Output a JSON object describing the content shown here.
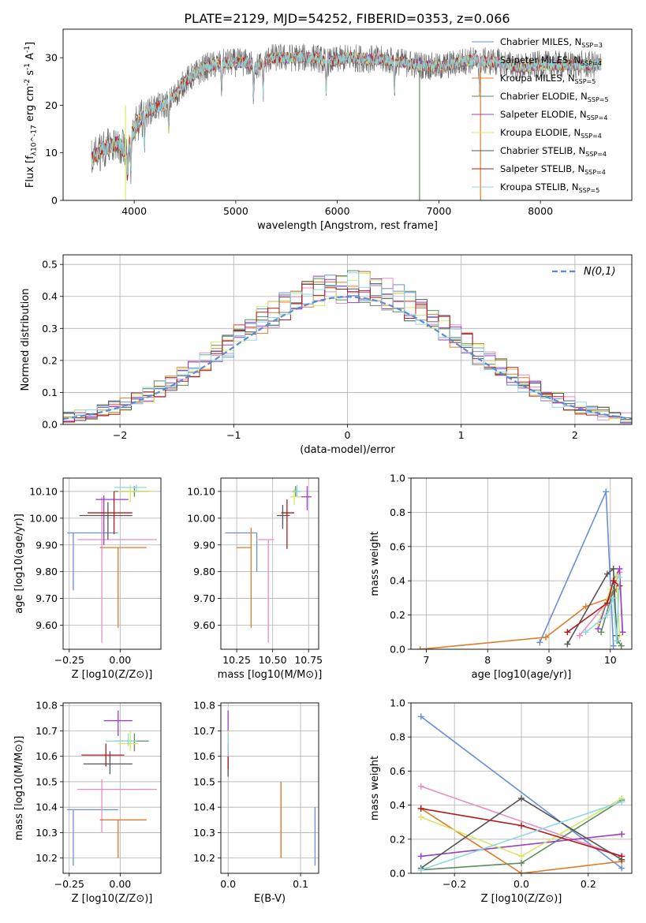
{
  "title": "PLATE=2129, MJD=54252, FIBERID=0353, z=0.066",
  "legend_labels": [
    "Chabrier MILES, N_SSP=3",
    "Salpeter MILES, N_SSP=4",
    "Kroupa MILES, N_SSP=5",
    "Chabrier ELODIE, N_SSP=5",
    "Salpeter ELODIE, N_SSP=4",
    "Kroupa ELODIE, N_SSP=4",
    "Chabrier STELIB, N_SSP=4",
    "Salpeter STELIB, N_SSP=4",
    "Kroupa STELIB, N_SSP=5"
  ],
  "model_colors": [
    "#6a8fd6",
    "#e68ec0",
    "#e07b2a",
    "#5f8a5f",
    "#9a3fc2",
    "#d6e86a",
    "#555555",
    "#b01c1c",
    "#8ed8e0"
  ],
  "chart_data": [
    {
      "type": "line",
      "xlabel": "wavelength [Angstrom, rest frame]",
      "ylabel": "Flux [f_λ10^-17 erg cm^-2 s^-1 A^-1]",
      "xlim": [
        3300,
        8900
      ],
      "ylim": [
        0,
        36
      ],
      "xticks": [
        4000,
        5000,
        6000,
        7000,
        8000
      ],
      "yticks": [
        0,
        10,
        20,
        30
      ],
      "grid": false,
      "legend_position": "right",
      "continuum": [
        [
          3580,
          9
        ],
        [
          3700,
          11
        ],
        [
          3850,
          12
        ],
        [
          3920,
          10
        ],
        [
          3950,
          12
        ],
        [
          4000,
          15
        ],
        [
          4100,
          18
        ],
        [
          4200,
          19.5
        ],
        [
          4300,
          20
        ],
        [
          4400,
          22
        ],
        [
          4500,
          25
        ],
        [
          4700,
          28
        ],
        [
          4900,
          29
        ],
        [
          5100,
          29
        ],
        [
          5200,
          28
        ],
        [
          5350,
          30
        ],
        [
          5500,
          30
        ],
        [
          5800,
          30
        ],
        [
          5900,
          29
        ],
        [
          6100,
          30
        ],
        [
          6500,
          29.5
        ],
        [
          6800,
          28.5
        ],
        [
          7000,
          28
        ],
        [
          7300,
          29.5
        ],
        [
          7600,
          29
        ],
        [
          7800,
          28
        ],
        [
          8000,
          28.5
        ],
        [
          8200,
          28.5
        ],
        [
          8600,
          28.5
        ]
      ]
    },
    {
      "type": "line",
      "xlabel": "(data-model)/error",
      "ylabel": "Normed distribution",
      "xlim": [
        -2.5,
        2.5
      ],
      "ylim": [
        0,
        0.53
      ],
      "xticks": [
        -2,
        -1,
        0,
        1,
        2
      ],
      "yticks": [
        0.0,
        0.1,
        0.2,
        0.3,
        0.4,
        0.5
      ],
      "grid": true,
      "legend_position": "top-right",
      "legend_label": "N(0,1)",
      "normal_curve": {
        "mean": 0,
        "sigma": 1
      }
    },
    {
      "type": "scatter",
      "xlabel": "Z [log10(Z/Z⊙)]",
      "ylabel": "age  [log10(age/yr)]",
      "xlim": [
        -0.28,
        0.2
      ],
      "ylim": [
        9.51,
        10.15
      ],
      "xticks": [
        -0.25,
        0.0
      ],
      "yticks": [
        9.6,
        9.7,
        9.8,
        9.9,
        10.0,
        10.1
      ],
      "grid": true,
      "points": [
        {
          "x": -0.23,
          "y": 9.945,
          "xlo": -0.26,
          "xhi": -0.01,
          "ylo": 9.73,
          "yhi": 9.945
        },
        {
          "x": -0.09,
          "y": 9.92,
          "xlo": -0.21,
          "xhi": 0.18,
          "ylo": 9.535,
          "yhi": 10.08
        },
        {
          "x": -0.01,
          "y": 9.89,
          "xlo": -0.1,
          "xhi": 0.13,
          "ylo": 9.59,
          "yhi": 9.89
        },
        {
          "x": 0.07,
          "y": 10.1,
          "xlo": -0.03,
          "xhi": 0.14,
          "ylo": 10.08,
          "yhi": 10.12
        },
        {
          "x": -0.08,
          "y": 10.07,
          "xlo": -0.12,
          "xhi": 0.04,
          "ylo": 9.9,
          "yhi": 10.085
        },
        {
          "x": 0.05,
          "y": 10.1,
          "xlo": -0.01,
          "xhi": 0.16,
          "ylo": 10.06,
          "yhi": 10.125
        },
        {
          "x": -0.06,
          "y": 10.01,
          "xlo": -0.2,
          "xhi": 0.06,
          "ylo": 9.92,
          "yhi": 10.06
        },
        {
          "x": -0.03,
          "y": 10.02,
          "xlo": -0.16,
          "xhi": 0.06,
          "ylo": 9.94,
          "yhi": 10.1
        },
        {
          "x": 0.08,
          "y": 10.115,
          "xlo": -0.03,
          "xhi": 0.13,
          "ylo": 10.1,
          "yhi": 10.125
        }
      ]
    },
    {
      "type": "scatter",
      "xlabel": "mass [log10(M/M⊙)]",
      "ylabel": "",
      "xlim": [
        10.14,
        10.82
      ],
      "ylim": [
        9.51,
        10.15
      ],
      "xticks": [
        10.25,
        10.5,
        10.75
      ],
      "yticks": [
        9.6,
        9.7,
        9.8,
        9.9,
        10.0,
        10.1
      ],
      "grid": true,
      "points": [
        {
          "x": 10.39,
          "y": 9.945,
          "xlo": 10.17,
          "xhi": 10.39,
          "ylo": 9.8,
          "yhi": 9.945
        },
        {
          "x": 10.47,
          "y": 9.92,
          "xlo": 10.4,
          "xhi": 10.51,
          "ylo": 9.535,
          "yhi": 9.92
        },
        {
          "x": 10.35,
          "y": 9.89,
          "xlo": 10.25,
          "xhi": 10.35,
          "ylo": 9.59,
          "yhi": 9.965
        },
        {
          "x": 10.66,
          "y": 10.1,
          "xlo": 10.64,
          "xhi": 10.69,
          "ylo": 10.08,
          "yhi": 10.12
        },
        {
          "x": 10.74,
          "y": 10.08,
          "xlo": 10.68,
          "xhi": 10.77,
          "ylo": 10.03,
          "yhi": 10.12
        },
        {
          "x": 10.65,
          "y": 10.08,
          "xlo": 10.62,
          "xhi": 10.7,
          "ylo": 10.05,
          "yhi": 10.11
        },
        {
          "x": 10.57,
          "y": 10.01,
          "xlo": 10.53,
          "xhi": 10.62,
          "ylo": 9.96,
          "yhi": 10.05
        },
        {
          "x": 10.6,
          "y": 10.02,
          "xlo": 10.56,
          "xhi": 10.65,
          "ylo": 9.885,
          "yhi": 10.07
        },
        {
          "x": 10.67,
          "y": 10.1,
          "xlo": 10.65,
          "xhi": 10.7,
          "ylo": 10.08,
          "yhi": 10.125
        }
      ]
    },
    {
      "type": "line",
      "xlabel": "age  [log10(age/yr)]",
      "ylabel": "mass weight",
      "xlim": [
        6.75,
        10.35
      ],
      "ylim": [
        0,
        1.0
      ],
      "xticks": [
        7,
        8,
        9,
        10
      ],
      "yticks": [
        0.0,
        0.2,
        0.4,
        0.6,
        0.8,
        1.0
      ],
      "grid": true,
      "series": [
        {
          "points": [
            [
              8.85,
              0.04
            ],
            [
              9.93,
              0.92
            ],
            [
              10.05,
              0.02
            ]
          ]
        },
        {
          "points": [
            [
              9.5,
              0.08
            ],
            [
              10.0,
              0.3
            ],
            [
              10.15,
              0.45
            ],
            [
              10.2,
              0.1
            ]
          ]
        },
        {
          "points": [
            [
              6.9,
              0.0
            ],
            [
              8.95,
              0.07
            ],
            [
              9.6,
              0.25
            ],
            [
              10.0,
              0.3
            ],
            [
              10.1,
              0.35
            ]
          ]
        },
        {
          "points": [
            [
              9.85,
              0.1
            ],
            [
              10.05,
              0.35
            ],
            [
              10.12,
              0.05
            ],
            [
              10.18,
              0.02
            ]
          ]
        },
        {
          "points": [
            [
              9.8,
              0.12
            ],
            [
              10.05,
              0.4
            ],
            [
              10.15,
              0.47
            ],
            [
              10.2,
              0.1
            ]
          ]
        },
        {
          "points": [
            [
              9.8,
              0.15
            ],
            [
              10.0,
              0.35
            ],
            [
              10.1,
              0.43
            ],
            [
              10.15,
              0.08
            ]
          ]
        },
        {
          "points": [
            [
              9.3,
              0.03
            ],
            [
              9.95,
              0.44
            ],
            [
              10.05,
              0.47
            ],
            [
              10.1,
              0.08
            ]
          ]
        },
        {
          "points": [
            [
              9.3,
              0.1
            ],
            [
              9.95,
              0.27
            ],
            [
              10.05,
              0.4
            ],
            [
              10.15,
              0.37
            ]
          ]
        },
        {
          "points": [
            [
              9.6,
              0.1
            ],
            [
              9.95,
              0.2
            ],
            [
              10.05,
              0.3
            ],
            [
              10.1,
              0.05
            ],
            [
              10.15,
              0.42
            ]
          ]
        }
      ]
    },
    {
      "type": "scatter",
      "xlabel": "Z [log10(Z/Z⊙)]",
      "ylabel": "mass [log10(M/M⊙)]",
      "xlim": [
        -0.28,
        0.2
      ],
      "ylim": [
        10.14,
        10.81
      ],
      "xticks": [
        -0.25,
        0.0
      ],
      "yticks": [
        10.2,
        10.3,
        10.4,
        10.5,
        10.6,
        10.7,
        10.8
      ],
      "grid": true,
      "points": [
        {
          "x": -0.23,
          "y": 10.39,
          "xlo": -0.26,
          "xhi": -0.01,
          "ylo": 10.17,
          "yhi": 10.39
        },
        {
          "x": -0.09,
          "y": 10.47,
          "xlo": -0.21,
          "xhi": 0.18,
          "ylo": 10.3,
          "yhi": 10.51
        },
        {
          "x": -0.01,
          "y": 10.35,
          "xlo": -0.1,
          "xhi": 0.13,
          "ylo": 10.2,
          "yhi": 10.35
        },
        {
          "x": 0.07,
          "y": 10.66,
          "xlo": -0.03,
          "xhi": 0.14,
          "ylo": 10.62,
          "yhi": 10.69
        },
        {
          "x": -0.01,
          "y": 10.74,
          "xlo": -0.08,
          "xhi": 0.06,
          "ylo": 10.68,
          "yhi": 10.78
        },
        {
          "x": 0.05,
          "y": 10.65,
          "xlo": -0.01,
          "xhi": 0.09,
          "ylo": 10.62,
          "yhi": 10.7
        },
        {
          "x": -0.05,
          "y": 10.57,
          "xlo": -0.18,
          "xhi": 0.06,
          "ylo": 10.53,
          "yhi": 10.62
        },
        {
          "x": -0.07,
          "y": 10.605,
          "xlo": -0.19,
          "xhi": 0.02,
          "ylo": 10.56,
          "yhi": 10.65
        },
        {
          "x": 0.04,
          "y": 10.66,
          "xlo": -0.07,
          "xhi": 0.08,
          "ylo": 10.64,
          "yhi": 10.69
        }
      ]
    },
    {
      "type": "scatter",
      "xlabel": "E(B-V)",
      "ylabel": "",
      "xlim": [
        -0.01,
        0.125
      ],
      "ylim": [
        10.14,
        10.81
      ],
      "xticks": [
        0.0,
        0.1
      ],
      "yticks": [
        10.2,
        10.3,
        10.4,
        10.5,
        10.6,
        10.7,
        10.8
      ],
      "grid": true,
      "points": [
        {
          "x": 0.12,
          "y": 10.39,
          "ylo": 10.17,
          "yhi": 10.4
        },
        {
          "x": 0.073,
          "y": 10.47,
          "ylo": 10.2,
          "yhi": 10.5
        },
        {
          "x": 0.073,
          "y": 10.35,
          "ylo": 10.2,
          "yhi": 10.5
        },
        {
          "x": 0.0,
          "y": 10.66,
          "ylo": 10.62,
          "yhi": 10.69
        },
        {
          "x": 0.0,
          "y": 10.74,
          "ylo": 10.68,
          "yhi": 10.78
        },
        {
          "x": 0.0,
          "y": 10.65,
          "ylo": 10.62,
          "yhi": 10.7
        },
        {
          "x": 0.0,
          "y": 10.57,
          "ylo": 10.52,
          "yhi": 10.61
        },
        {
          "x": 0.0,
          "y": 10.605,
          "ylo": 10.55,
          "yhi": 10.65
        },
        {
          "x": 0.0,
          "y": 10.66,
          "ylo": 10.6,
          "yhi": 10.69
        }
      ]
    },
    {
      "type": "line",
      "xlabel": "Z [log10(Z/Z⊙)]",
      "ylabel": "mass weight",
      "xlim": [
        -0.33,
        0.33
      ],
      "ylim": [
        0,
        1.0
      ],
      "xticks": [
        -0.2,
        0.0,
        0.2
      ],
      "yticks": [
        0.0,
        0.2,
        0.4,
        0.6,
        0.8,
        1.0
      ],
      "grid": true,
      "series": [
        {
          "points": [
            [
              -0.3,
              0.92
            ],
            [
              0.3,
              0.03
            ]
          ]
        },
        {
          "points": [
            [
              -0.3,
              0.51
            ],
            [
              0.3,
              0.1
            ]
          ]
        },
        {
          "points": [
            [
              -0.3,
              0.38
            ],
            [
              0.0,
              0.0
            ],
            [
              0.3,
              0.07
            ]
          ]
        },
        {
          "points": [
            [
              -0.3,
              0.02
            ],
            [
              0.0,
              0.06
            ],
            [
              0.3,
              0.43
            ]
          ]
        },
        {
          "points": [
            [
              -0.3,
              0.1
            ],
            [
              0.3,
              0.23
            ]
          ]
        },
        {
          "points": [
            [
              -0.3,
              0.33
            ],
            [
              0.0,
              0.1
            ],
            [
              0.3,
              0.44
            ]
          ]
        },
        {
          "points": [
            [
              -0.3,
              0.03
            ],
            [
              0.0,
              0.44
            ],
            [
              0.3,
              0.08
            ]
          ]
        },
        {
          "points": [
            [
              -0.3,
              0.38
            ],
            [
              0.0,
              0.28
            ],
            [
              0.3,
              0.1
            ]
          ]
        },
        {
          "points": [
            [
              -0.3,
              0.02
            ],
            [
              0.3,
              0.42
            ]
          ]
        }
      ]
    }
  ]
}
